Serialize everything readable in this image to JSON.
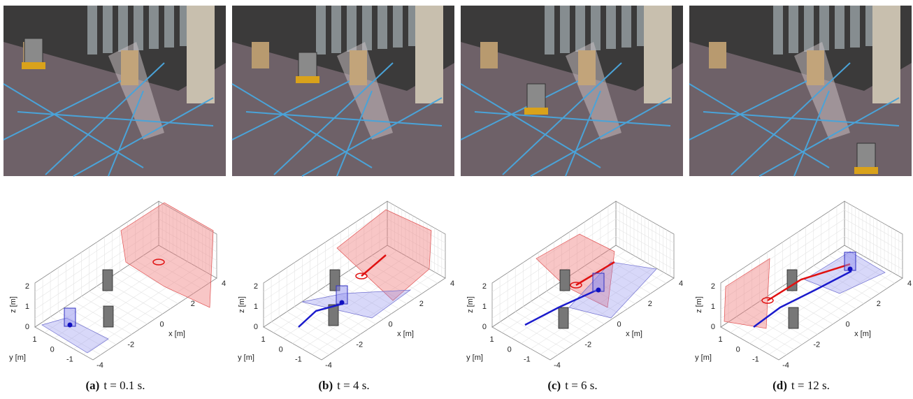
{
  "panels": [
    {
      "label": "(a)",
      "caption": "t = 0.1 s."
    },
    {
      "label": "(b)",
      "caption": "t = 4 s."
    },
    {
      "label": "(c)",
      "caption": "t = 6 s."
    },
    {
      "label": "(d)",
      "caption": "t = 12 s."
    }
  ],
  "axes": {
    "x_label": "x [m]",
    "y_label": "y [m]",
    "z_label": "z [m]",
    "x_ticks": [
      "-4",
      "-2",
      "0",
      "2",
      "4"
    ],
    "y_ticks": [
      "1",
      "0",
      "-1"
    ],
    "z_ticks": [
      "0",
      "1",
      "2"
    ]
  }
}
